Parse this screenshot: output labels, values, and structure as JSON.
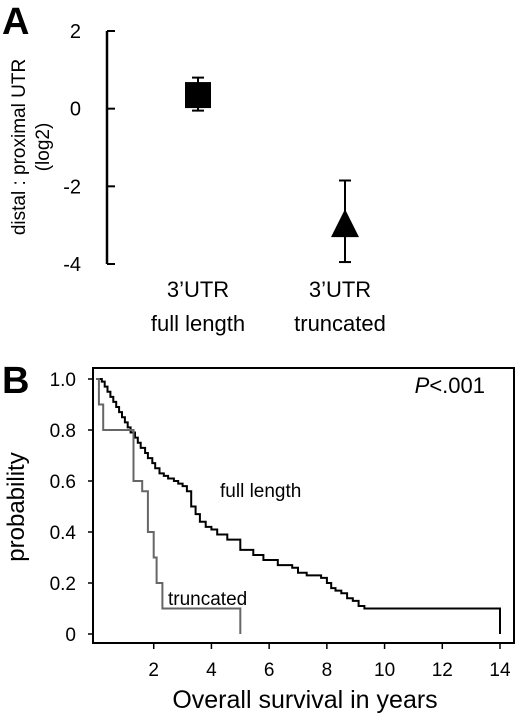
{
  "panel_a": {
    "label": "A",
    "chart_data": {
      "type": "scatter",
      "ylabel_line1": "distal : proximal UTR",
      "ylabel_line2": "(log2)",
      "ylim": [
        -4,
        2
      ],
      "yticks": [
        "2",
        "0",
        "-2",
        "-4"
      ],
      "ytick_values": [
        2,
        0,
        -2,
        -4
      ],
      "categories": [
        {
          "line1": "3’UTR",
          "line2": "full length"
        },
        {
          "line1": "3’UTR",
          "line2": "truncated"
        }
      ],
      "points": [
        {
          "category": 0,
          "value": 0.35,
          "err_low": -0.05,
          "err_high": 0.8,
          "marker": "square"
        },
        {
          "category": 1,
          "value": -3.0,
          "err_low": -3.95,
          "err_high": -1.85,
          "marker": "triangle"
        }
      ]
    }
  },
  "panel_b": {
    "label": "B",
    "chart_data": {
      "type": "line",
      "xlabel": "Overall survival in years",
      "ylabel": "probability",
      "xlim": [
        0,
        14
      ],
      "ylim": [
        0,
        1.0
      ],
      "xticks": [
        "2",
        "4",
        "6",
        "8",
        "10",
        "12",
        "14"
      ],
      "xtick_values": [
        2,
        4,
        6,
        8,
        10,
        12,
        14
      ],
      "yticks": [
        "1.0",
        "0.8",
        "0.6",
        "0.4",
        "0.2",
        "0"
      ],
      "ytick_values": [
        1.0,
        0.8,
        0.6,
        0.4,
        0.2,
        0
      ],
      "annotation_p": "P",
      "annotation_val": "<.001",
      "series": [
        {
          "name": "full length",
          "color": "#000000",
          "x": [
            0,
            0.2,
            0.3,
            0.4,
            0.5,
            0.6,
            0.7,
            0.8,
            0.9,
            1.0,
            1.1,
            1.2,
            1.35,
            1.45,
            1.55,
            1.7,
            1.8,
            1.95,
            2.05,
            2.2,
            2.35,
            2.5,
            2.7,
            2.85,
            3.0,
            3.15,
            3.3,
            3.45,
            3.6,
            3.8,
            4.0,
            4.2,
            4.55,
            5.0,
            5.45,
            5.8,
            6.3,
            6.8,
            7.0,
            7.3,
            7.6,
            7.8,
            8.0,
            8.15,
            8.3,
            8.5,
            8.7,
            8.9,
            9.1,
            9.3,
            10.5,
            12.0,
            13.5,
            13.9,
            14.0
          ],
          "y": [
            1.0,
            0.99,
            0.97,
            0.95,
            0.93,
            0.91,
            0.89,
            0.87,
            0.85,
            0.83,
            0.81,
            0.79,
            0.77,
            0.75,
            0.73,
            0.71,
            0.69,
            0.67,
            0.65,
            0.63,
            0.62,
            0.61,
            0.6,
            0.59,
            0.58,
            0.56,
            0.5,
            0.47,
            0.44,
            0.42,
            0.41,
            0.39,
            0.37,
            0.33,
            0.31,
            0.29,
            0.27,
            0.26,
            0.24,
            0.23,
            0.23,
            0.22,
            0.2,
            0.18,
            0.17,
            0.16,
            0.14,
            0.13,
            0.11,
            0.1,
            0.1,
            0.1,
            0.1,
            0.1,
            0.0
          ]
        },
        {
          "name": "truncated",
          "color": "#666666",
          "x": [
            0,
            0.1,
            0.25,
            1.0,
            1.3,
            1.6,
            1.8,
            2.0,
            2.1,
            2.3,
            2.5,
            5.0
          ],
          "y": [
            1.0,
            0.9,
            0.8,
            0.8,
            0.6,
            0.56,
            0.4,
            0.3,
            0.2,
            0.1,
            0.1,
            0.0
          ]
        }
      ]
    }
  }
}
